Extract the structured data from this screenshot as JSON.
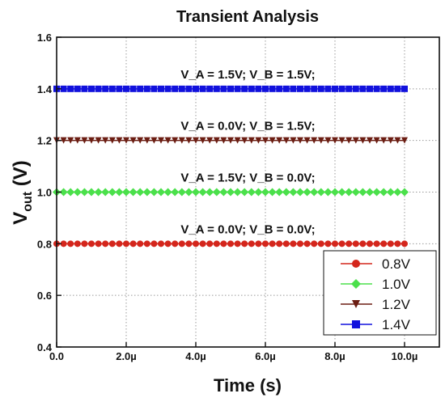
{
  "chart_data": {
    "type": "line",
    "title": "Transient Analysis",
    "xlabel": "Time (s)",
    "ylabel_main": "V",
    "ylabel_sub": "out",
    "ylabel_tail": " (V)",
    "xlim": [
      0,
      11
    ],
    "ylim": [
      0.4,
      1.6
    ],
    "xticks": [
      0,
      2,
      4,
      6,
      8,
      10
    ],
    "xtick_labels": [
      "0.0",
      "2.0µ",
      "4.0µ",
      "6.0µ",
      "8.0µ",
      "10.0µ"
    ],
    "yticks": [
      0.4,
      0.6,
      0.8,
      1.0,
      1.2,
      1.4,
      1.6
    ],
    "ytick_labels": [
      "0.4",
      "0.6",
      "0.8",
      "1.0",
      "1.2",
      "1.4",
      "1.6"
    ],
    "grid": true,
    "legend_position": "bottom-right",
    "x_range": [
      0,
      10
    ],
    "series": [
      {
        "name": "0.8V",
        "value": 0.8,
        "color": "#d4261c",
        "marker": "circle",
        "annotation": "V_A = 0.0V; V_B = 0.0V;"
      },
      {
        "name": "1.0V",
        "value": 1.0,
        "color": "#4be04b",
        "marker": "diamond",
        "annotation": "V_A = 1.5V; V_B = 0.0V;"
      },
      {
        "name": "1.2V",
        "value": 1.2,
        "color": "#6b1d12",
        "marker": "triangle-down",
        "annotation": "V_A = 0.0V; V_B = 1.5V;"
      },
      {
        "name": "1.4V",
        "value": 1.4,
        "color": "#1111dd",
        "marker": "square",
        "annotation": "V_A = 1.5V; V_B = 1.5V;"
      }
    ]
  }
}
